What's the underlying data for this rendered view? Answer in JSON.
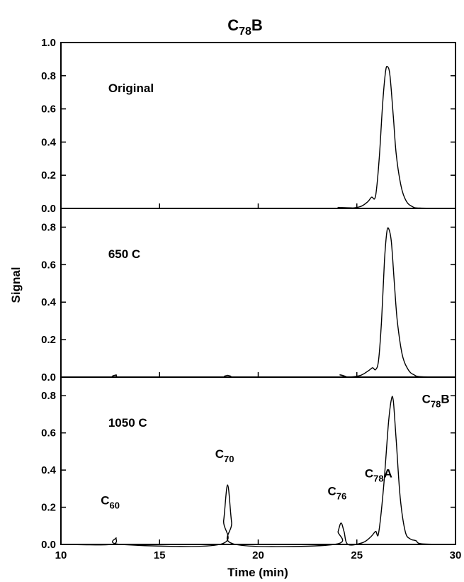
{
  "chart_data": {
    "type": "line",
    "title": {
      "main": "C",
      "sub": "78",
      "tail": "B"
    },
    "xlabel": "Time (min)",
    "ylabel": "Signal",
    "xlim": [
      10,
      30
    ],
    "xticks": [
      "10",
      "15",
      "20",
      "25",
      "30"
    ],
    "grid": false,
    "panels": [
      {
        "label": "Original",
        "ylim": [
          0,
          1.0
        ],
        "yticks": [
          "0.0",
          "0.2",
          "0.4",
          "0.6",
          "0.8",
          "1.0"
        ],
        "series": [
          {
            "x": [
              10,
              23.8,
              24.05,
              24.3,
              24.6,
              25.2,
              25.55,
              25.75,
              25.9,
              26.0,
              26.15,
              26.3,
              26.45,
              26.55,
              26.68,
              26.85,
              27.0,
              27.25,
              27.5,
              27.8,
              28.2,
              30
            ],
            "y": [
              0,
              0,
              0.006,
              0.002,
              0,
              0.012,
              0.04,
              0.068,
              0.058,
              0.12,
              0.33,
              0.62,
              0.82,
              0.855,
              0.8,
              0.55,
              0.32,
              0.13,
              0.045,
              0.012,
              0.002,
              0
            ]
          }
        ],
        "annotations": []
      },
      {
        "label": "650 C",
        "ylim": [
          0,
          0.9
        ],
        "yticks": [
          "0.0",
          "0.2",
          "0.4",
          "0.6",
          "0.8"
        ],
        "series": [
          {
            "x": [
              10,
              12.55,
              12.8,
              13.05,
              18.15,
              18.45,
              18.75,
              23.9,
              24.15,
              24.4,
              24.6,
              25.2,
              25.6,
              25.8,
              25.95,
              26.1,
              26.25,
              26.4,
              26.52,
              26.62,
              26.75,
              26.9,
              27.05,
              27.3,
              27.6,
              27.9,
              28.3,
              30
            ],
            "y": [
              0,
              0,
              0.012,
              0,
              0,
              0.01,
              0,
              0,
              0.012,
              0.005,
              0,
              0.01,
              0.035,
              0.05,
              0.04,
              0.09,
              0.3,
              0.62,
              0.775,
              0.79,
              0.72,
              0.5,
              0.3,
              0.12,
              0.04,
              0.012,
              0.002,
              0
            ]
          }
        ],
        "annotations": []
      },
      {
        "label": "1050 C",
        "ylim": [
          0,
          0.9
        ],
        "yticks": [
          "0.0",
          "0.2",
          "0.4",
          "0.6",
          "0.8"
        ],
        "series": [
          {
            "x": [
              10,
              12.55,
              12.8,
              13.05,
              18.05,
              18.25,
              18.45,
              18.65,
              18.85,
              23.85,
              24.05,
              24.2,
              24.35,
              24.55,
              25.3,
              25.7,
              25.95,
              26.1,
              26.35,
              26.6,
              26.75,
              26.85,
              27.0,
              27.2,
              27.45,
              27.7,
              28.0,
              28.3,
              30
            ],
            "y": [
              0,
              0,
              0.035,
              0,
              0,
              0.13,
              0.32,
              0.12,
              0,
              0,
              0.07,
              0.115,
              0.07,
              0,
              0.01,
              0.04,
              0.07,
              0.06,
              0.3,
              0.65,
              0.78,
              0.77,
              0.55,
              0.25,
              0.07,
              0.03,
              0.02,
              0.003,
              0
            ]
          }
        ],
        "annotations": [
          {
            "text": "C",
            "sub": "60",
            "tail": "",
            "x": 12.5,
            "y": 0.215
          },
          {
            "text": "C",
            "sub": "70",
            "tail": "",
            "x": 18.3,
            "y": 0.465
          },
          {
            "text": "C",
            "sub": "76",
            "tail": "",
            "x": 24.0,
            "y": 0.265
          },
          {
            "text": "C",
            "sub": "78",
            "tail": "A",
            "x": 26.1,
            "y": 0.36
          },
          {
            "text": "C",
            "sub": "78",
            "tail": "B",
            "x": 29.0,
            "y": 0.76
          }
        ]
      }
    ]
  }
}
